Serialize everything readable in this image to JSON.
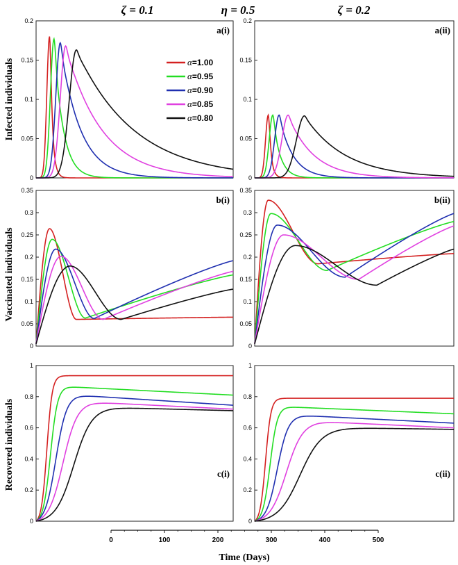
{
  "headers": {
    "left": "ζ = 0.1",
    "center": "η = 0.5",
    "right": "ζ = 0.2"
  },
  "legend_prefix": "α=",
  "x_axis": {
    "label": "Time (Days)",
    "ticks": [
      "0",
      "100",
      "200",
      "300",
      "400",
      "500"
    ],
    "range": [
      0,
      500
    ]
  },
  "colors": {
    "a100": "#d42020",
    "a095": "#22dd22",
    "a090": "#1f2fb0",
    "a085": "#e040e0",
    "a080": "#111111"
  },
  "chart_data": [
    {
      "id": "a_i",
      "type": "line",
      "panel_label": "a(i)",
      "ylabel": "Infected individuals",
      "ylim": [
        0,
        0.2
      ],
      "yticks": [
        "0",
        "0.05",
        "0.1",
        "0.15",
        "0.2"
      ],
      "series": [
        {
          "name": "1.00",
          "peak_day": 15,
          "peak": 0.18,
          "rise": 3.0,
          "decay": 3.0,
          "base": 0.0
        },
        {
          "name": "0.95",
          "peak_day": 20,
          "peak": 0.177,
          "rise": 4.0,
          "decay": 10.0,
          "base": 0.0
        },
        {
          "name": "0.90",
          "peak_day": 27,
          "peak": 0.172,
          "rise": 5.0,
          "decay": 22.0,
          "base": 0.0
        },
        {
          "name": "0.85",
          "peak_day": 33,
          "peak": 0.168,
          "rise": 6.0,
          "decay": 40.0,
          "base": 0.0
        },
        {
          "name": "0.80",
          "peak_day": 45,
          "peak": 0.163,
          "rise": 8.0,
          "decay": 65.0,
          "base": 0.0
        }
      ]
    },
    {
      "id": "a_ii",
      "type": "line",
      "panel_label": "a(ii)",
      "ylim": [
        0,
        0.2
      ],
      "yticks": [
        "0",
        "0.05",
        "0.1",
        "0.15",
        "0.2"
      ],
      "series": [
        {
          "name": "1.00",
          "peak_day": 15,
          "peak": 0.08,
          "rise": 3.0,
          "decay": 3.0,
          "base": 0.0
        },
        {
          "name": "0.95",
          "peak_day": 20,
          "peak": 0.08,
          "rise": 4.0,
          "decay": 8.0,
          "base": 0.0
        },
        {
          "name": "0.90",
          "peak_day": 27,
          "peak": 0.08,
          "rise": 5.0,
          "decay": 15.0,
          "base": 0.0
        },
        {
          "name": "0.85",
          "peak_day": 37,
          "peak": 0.08,
          "rise": 7.0,
          "decay": 28.0,
          "base": 0.0
        },
        {
          "name": "0.80",
          "peak_day": 55,
          "peak": 0.079,
          "rise": 9.0,
          "decay": 45.0,
          "base": 0.0
        }
      ]
    },
    {
      "id": "b_i",
      "type": "line",
      "panel_label": "b(i)",
      "ylabel": "Vaccinated individuals",
      "ylim": [
        0,
        0.35
      ],
      "yticks": [
        "0",
        "0.05",
        "0.1",
        "0.15",
        "0.2",
        "0.25",
        "0.3",
        "0.35"
      ],
      "series": [
        {
          "name": "1.00",
          "start": 0.005,
          "peak_day": 15,
          "peak": 0.264,
          "min_day": 45,
          "min": 0.06,
          "end": 0.065
        },
        {
          "name": "0.95",
          "start": 0.005,
          "peak_day": 18,
          "peak": 0.24,
          "min_day": 55,
          "min": 0.063,
          "end": 0.16
        },
        {
          "name": "0.90",
          "start": 0.005,
          "peak_day": 22,
          "peak": 0.218,
          "min_day": 65,
          "min": 0.062,
          "end": 0.192
        },
        {
          "name": "0.85",
          "start": 0.005,
          "peak_day": 28,
          "peak": 0.202,
          "min_day": 75,
          "min": 0.06,
          "end": 0.168
        },
        {
          "name": "0.80",
          "start": 0.005,
          "peak_day": 38,
          "peak": 0.18,
          "min_day": 95,
          "min": 0.06,
          "end": 0.128
        }
      ]
    },
    {
      "id": "b_ii",
      "type": "line",
      "panel_label": "b(ii)",
      "ylim": [
        0,
        0.35
      ],
      "yticks": [
        "0",
        "0.05",
        "0.1",
        "0.15",
        "0.2",
        "0.25",
        "0.3",
        "0.35"
      ],
      "series": [
        {
          "name": "1.00",
          "start": 0.005,
          "peak_day": 15,
          "peak": 0.328,
          "min_day": 70,
          "min": 0.185,
          "end": 0.208
        },
        {
          "name": "0.95",
          "start": 0.005,
          "peak_day": 18,
          "peak": 0.298,
          "min_day": 80,
          "min": 0.17,
          "end": 0.28
        },
        {
          "name": "0.90",
          "start": 0.005,
          "peak_day": 25,
          "peak": 0.272,
          "min_day": 100,
          "min": 0.155,
          "end": 0.298
        },
        {
          "name": "0.85",
          "start": 0.005,
          "peak_day": 32,
          "peak": 0.25,
          "min_day": 115,
          "min": 0.15,
          "end": 0.27
        },
        {
          "name": "0.80",
          "start": 0.005,
          "peak_day": 45,
          "peak": 0.226,
          "min_day": 135,
          "min": 0.137,
          "end": 0.218
        }
      ]
    },
    {
      "id": "c_i",
      "type": "line",
      "panel_label": "c(i)",
      "ylabel": "Recovered individuals",
      "ylim": [
        0,
        1
      ],
      "yticks": [
        "0",
        "0.2",
        "0.4",
        "0.6",
        "0.8",
        "1"
      ],
      "series": [
        {
          "name": "1.00",
          "mid": 12,
          "width": 3,
          "plateau": 0.935,
          "end": 0.935
        },
        {
          "name": "0.95",
          "mid": 16,
          "width": 4,
          "plateau": 0.865,
          "end": 0.81
        },
        {
          "name": "0.90",
          "mid": 22,
          "width": 6,
          "plateau": 0.81,
          "end": 0.745
        },
        {
          "name": "0.85",
          "mid": 30,
          "width": 8,
          "plateau": 0.765,
          "end": 0.72
        },
        {
          "name": "0.80",
          "mid": 42,
          "width": 10,
          "plateau": 0.73,
          "end": 0.71
        }
      ]
    },
    {
      "id": "c_ii",
      "type": "line",
      "panel_label": "c(ii)",
      "ylim": [
        0,
        1
      ],
      "yticks": [
        "0",
        "0.2",
        "0.4",
        "0.6",
        "0.8",
        "1"
      ],
      "series": [
        {
          "name": "1.00",
          "mid": 12,
          "width": 3,
          "plateau": 0.79,
          "end": 0.79
        },
        {
          "name": "0.95",
          "mid": 17,
          "width": 4,
          "plateau": 0.735,
          "end": 0.69
        },
        {
          "name": "0.90",
          "mid": 25,
          "width": 6,
          "plateau": 0.68,
          "end": 0.63
        },
        {
          "name": "0.85",
          "mid": 35,
          "width": 9,
          "plateau": 0.64,
          "end": 0.6
        },
        {
          "name": "0.80",
          "mid": 50,
          "width": 12,
          "plateau": 0.6,
          "end": 0.59
        }
      ]
    }
  ]
}
